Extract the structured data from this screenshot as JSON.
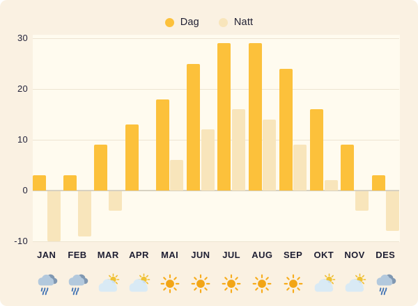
{
  "legend": {
    "items": [
      {
        "label": "Dag",
        "color": "#FCC13B"
      },
      {
        "label": "Natt",
        "color": "#F8E5BB"
      }
    ]
  },
  "chart_data": {
    "type": "bar",
    "title": "",
    "xlabel": "",
    "ylabel": "",
    "categories": [
      "JAN",
      "FEB",
      "MAR",
      "APR",
      "MAI",
      "JUN",
      "JUL",
      "AUG",
      "SEP",
      "OKT",
      "NOV",
      "DES"
    ],
    "series": [
      {
        "name": "Dag",
        "color": "#FCC13B",
        "values": [
          3,
          3,
          9,
          13,
          18,
          25,
          29,
          29,
          24,
          16,
          9,
          3
        ]
      },
      {
        "name": "Natt",
        "color": "#F8E5BB",
        "values": [
          -10,
          -9,
          -4,
          0,
          6,
          12,
          16,
          14,
          9,
          2,
          -4,
          -8
        ]
      }
    ],
    "ylim": [
      -10,
      30
    ],
    "yticks": [
      30,
      20,
      10,
      0,
      -10
    ],
    "grid": true,
    "legend_position": "top-center"
  },
  "weather_icons": [
    {
      "month": "JAN",
      "icon": "rain-cloud-icon"
    },
    {
      "month": "FEB",
      "icon": "rain-cloud-icon"
    },
    {
      "month": "MAR",
      "icon": "sun-behind-cloud-icon"
    },
    {
      "month": "APR",
      "icon": "sun-behind-cloud-icon"
    },
    {
      "month": "MAI",
      "icon": "sun-icon"
    },
    {
      "month": "JUN",
      "icon": "sun-icon"
    },
    {
      "month": "JUL",
      "icon": "sun-icon"
    },
    {
      "month": "AUG",
      "icon": "sun-icon"
    },
    {
      "month": "SEP",
      "icon": "sun-icon"
    },
    {
      "month": "OKT",
      "icon": "sun-behind-cloud-icon"
    },
    {
      "month": "NOV",
      "icon": "sun-behind-cloud-icon"
    },
    {
      "month": "DES",
      "icon": "rain-cloud-icon"
    }
  ],
  "colors": {
    "page_bg": "#FAF1E2",
    "plot_bg": "#FFFBEF",
    "gridline": "#EDE4D1",
    "zero_line": "#D7D1C2",
    "text": "#1E1E32",
    "day_bar": "#FCC13B",
    "night_bar": "#F8E5BB",
    "sun": "#F2A516",
    "rain_drop": "#4273B4"
  }
}
